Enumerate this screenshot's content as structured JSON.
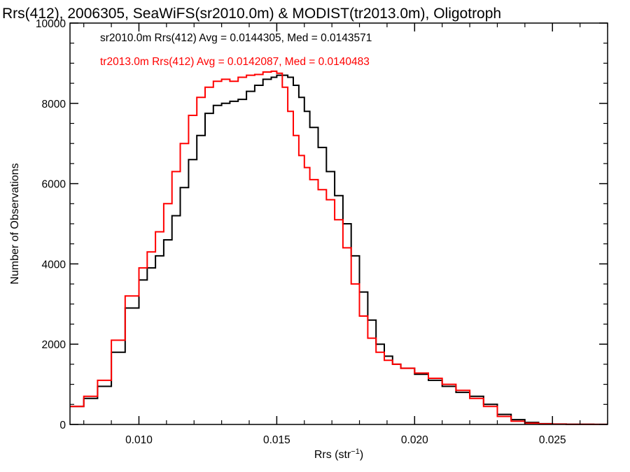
{
  "chart_data": {
    "type": "line",
    "step": true,
    "title": "Rrs(412), 2006305, SeaWiFS(sr2010.0m) & MODIST(tr2013.0m), Oligotroph",
    "xlabel": "Rrs (str⁻¹)",
    "ylabel": "Number of Observations",
    "xlim": [
      0.0075,
      0.027
    ],
    "ylim": [
      0,
      10000
    ],
    "xticks": [
      0.01,
      0.015,
      0.02,
      0.025
    ],
    "xtick_labels": [
      "0.010",
      "0.015",
      "0.020",
      "0.025"
    ],
    "yticks": [
      0,
      2000,
      4000,
      6000,
      8000,
      10000
    ],
    "ytick_labels": [
      "0",
      "2000",
      "4000",
      "6000",
      "8000",
      "10000"
    ],
    "grid": false,
    "legend_position": "top-left",
    "annotations": [
      "sr2010.0m Rrs(412) Avg = 0.0144305, Med = 0.0143571",
      "tr2013.0m Rrs(412) Avg = 0.0142087, Med = 0.0140483"
    ],
    "series": [
      {
        "color": "#000000",
        "x": [
          0.0075,
          0.008,
          0.0085,
          0.009,
          0.0095,
          0.01,
          0.0103,
          0.0106,
          0.0109,
          0.0112,
          0.0115,
          0.0118,
          0.0121,
          0.0124,
          0.0127,
          0.013,
          0.0133,
          0.0136,
          0.0139,
          0.0142,
          0.0145,
          0.0148,
          0.015,
          0.0152,
          0.0154,
          0.0156,
          0.0158,
          0.016,
          0.0162,
          0.0165,
          0.0168,
          0.0171,
          0.0174,
          0.0177,
          0.018,
          0.0183,
          0.0186,
          0.0189,
          0.0192,
          0.0195,
          0.02,
          0.0205,
          0.021,
          0.0215,
          0.022,
          0.0225,
          0.023,
          0.0235,
          0.024,
          0.0245,
          0.025,
          0.0255,
          0.026,
          0.0265,
          0.027
        ],
        "y": [
          450,
          650,
          950,
          1800,
          2900,
          3600,
          3900,
          4200,
          4600,
          5200,
          5900,
          6600,
          7200,
          7750,
          7950,
          8000,
          8050,
          8100,
          8300,
          8450,
          8600,
          8650,
          8700,
          8700,
          8650,
          8450,
          8150,
          7800,
          7400,
          6900,
          6300,
          5700,
          5000,
          4200,
          3300,
          2600,
          2000,
          1700,
          1500,
          1400,
          1250,
          1100,
          950,
          800,
          700,
          500,
          250,
          120,
          50,
          20,
          10,
          5,
          3,
          2,
          2
        ]
      },
      {
        "color": "#ff0000",
        "x": [
          0.0075,
          0.008,
          0.0085,
          0.009,
          0.0095,
          0.01,
          0.0103,
          0.0106,
          0.0109,
          0.0112,
          0.0115,
          0.0118,
          0.0121,
          0.0124,
          0.0127,
          0.013,
          0.0133,
          0.0136,
          0.0139,
          0.0142,
          0.0145,
          0.0148,
          0.015,
          0.0152,
          0.0154,
          0.0156,
          0.0158,
          0.016,
          0.0162,
          0.0165,
          0.0168,
          0.0171,
          0.0174,
          0.0177,
          0.018,
          0.0183,
          0.0186,
          0.0189,
          0.0192,
          0.0195,
          0.02,
          0.0205,
          0.021,
          0.0215,
          0.022,
          0.0225,
          0.023,
          0.0235,
          0.024,
          0.0245,
          0.025,
          0.0255,
          0.026,
          0.0265,
          0.027
        ],
        "y": [
          450,
          700,
          1100,
          2100,
          3200,
          3900,
          4300,
          4800,
          5500,
          6300,
          7000,
          7700,
          8150,
          8400,
          8550,
          8600,
          8550,
          8650,
          8700,
          8720,
          8780,
          8800,
          8750,
          8400,
          7800,
          7200,
          6700,
          6400,
          6100,
          5850,
          5600,
          5100,
          4400,
          3500,
          2700,
          2150,
          1800,
          1600,
          1500,
          1400,
          1280,
          1150,
          1000,
          850,
          650,
          450,
          200,
          80,
          30,
          15,
          8,
          5,
          3,
          2,
          2
        ]
      }
    ]
  }
}
